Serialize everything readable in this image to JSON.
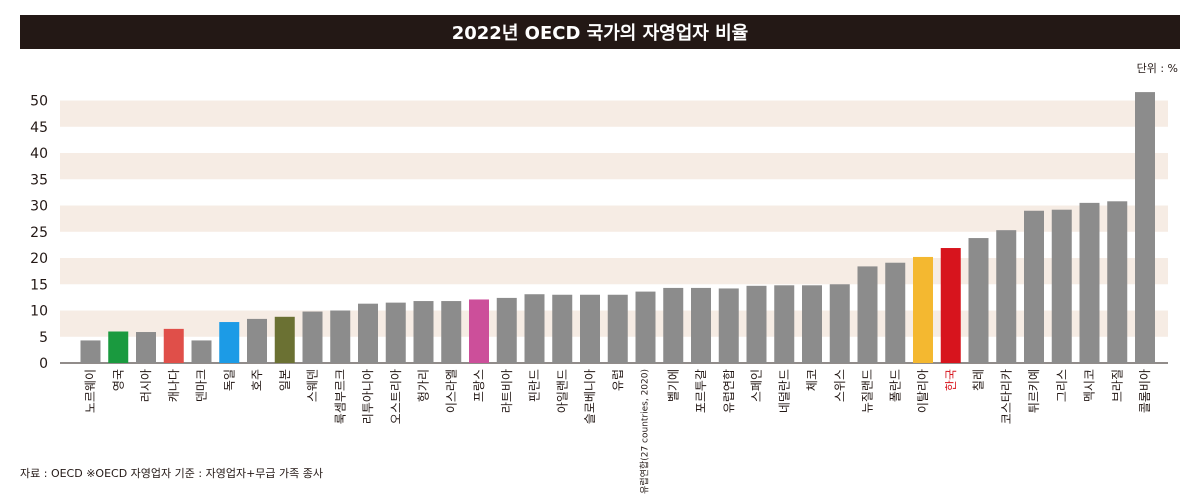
{
  "title": "2022년 OECD 국가의 자영업자 비율",
  "unit_label": "단위 : %",
  "source": "자료 : OECD ※OECD 자영업자 기준 : 자영업자+무급 가족 종사",
  "colors": {
    "default_bar": "#8c8c8c",
    "band": "#f6ece4",
    "title_bg": "#231815",
    "text": "#231815",
    "highlight_label": "#d7141d"
  },
  "chart_data": {
    "type": "bar",
    "title": "2022년 OECD 국가의 자영업자 비율",
    "xlabel": "",
    "ylabel": "",
    "ylim": [
      0,
      50
    ],
    "yticks": [
      0,
      5,
      10,
      15,
      20,
      25,
      30,
      35,
      40,
      45,
      50
    ],
    "grid": "alternating horizontal bands",
    "categories": [
      "노르웨이",
      "영국",
      "러시아",
      "캐나다",
      "덴마크",
      "독일",
      "호주",
      "일본",
      "스웨덴",
      "룩셈부르크",
      "리투아니아",
      "오스트리아",
      "헝가리",
      "이스라엘",
      "프랑스",
      "라트비아",
      "핀란드",
      "아일랜드",
      "슬로베니아",
      "유럽",
      "유럽연합(27 countries, 2020)",
      "벨기에",
      "포르투갈",
      "유럽연합",
      "스페인",
      "네덜란드",
      "체코",
      "스위스",
      "뉴질랜드",
      "폴란드",
      "이탈리아",
      "한국",
      "칠레",
      "코스타리카",
      "튀르키예",
      "그리스",
      "멕시코",
      "브라질",
      "콜롬비아"
    ],
    "values": [
      4.3,
      6.0,
      5.9,
      6.5,
      4.3,
      7.8,
      8.4,
      8.8,
      9.8,
      10.0,
      11.3,
      11.5,
      11.8,
      11.8,
      12.1,
      12.4,
      13.1,
      13.0,
      13.0,
      13.0,
      13.6,
      14.3,
      14.3,
      14.2,
      14.7,
      14.8,
      14.8,
      15.0,
      18.4,
      19.1,
      20.2,
      21.9,
      23.8,
      25.3,
      29.0,
      29.2,
      30.5,
      30.8,
      51.6
    ],
    "bar_colors": [
      "#8c8c8c",
      "#1a9a3f",
      "#8c8c8c",
      "#e04f49",
      "#8c8c8c",
      "#1c9be6",
      "#8c8c8c",
      "#6b7133",
      "#8c8c8c",
      "#8c8c8c",
      "#8c8c8c",
      "#8c8c8c",
      "#8c8c8c",
      "#8c8c8c",
      "#cc4f9a",
      "#8c8c8c",
      "#8c8c8c",
      "#8c8c8c",
      "#8c8c8c",
      "#8c8c8c",
      "#8c8c8c",
      "#8c8c8c",
      "#8c8c8c",
      "#8c8c8c",
      "#8c8c8c",
      "#8c8c8c",
      "#8c8c8c",
      "#8c8c8c",
      "#8c8c8c",
      "#8c8c8c",
      "#f4b830",
      "#d7141d",
      "#8c8c8c",
      "#8c8c8c",
      "#8c8c8c",
      "#8c8c8c",
      "#8c8c8c",
      "#8c8c8c",
      "#8c8c8c"
    ],
    "highlight_category": "한국"
  }
}
